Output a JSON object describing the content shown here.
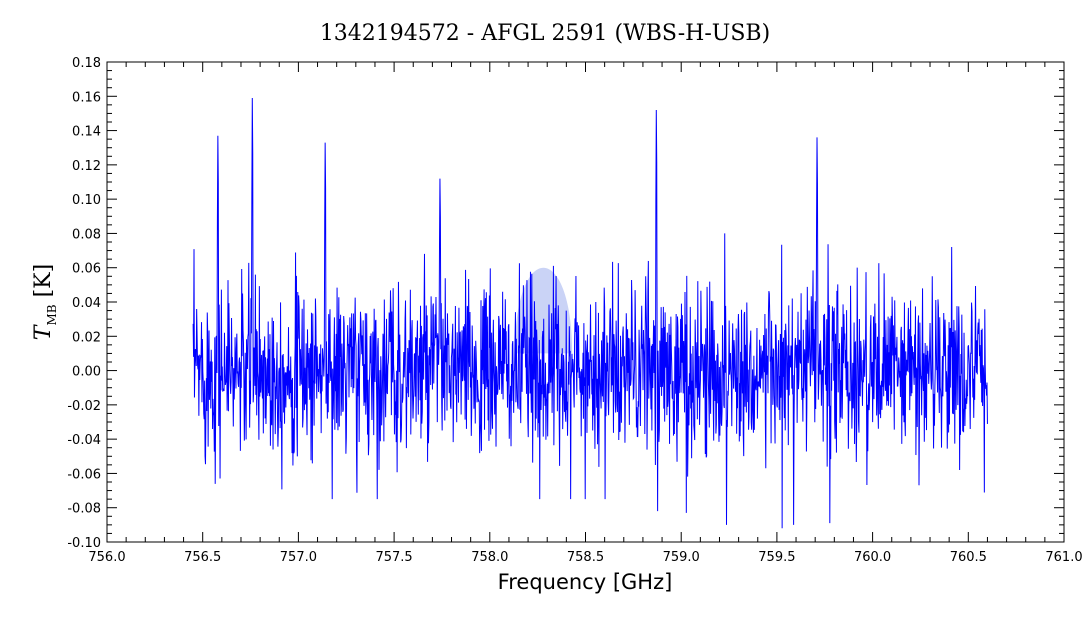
{
  "chart_data": {
    "type": "line",
    "title": "1342194572 - AFGL 2591 (WBS-H-USB)",
    "xlabel": "Frequency [GHz]",
    "ylabel": {
      "symbol": "T",
      "subscript": "MB",
      "unit": "[K]"
    },
    "xlim": [
      756.0,
      761.0
    ],
    "ylim": [
      -0.1,
      0.18
    ],
    "xticks": [
      "756.0",
      "756.5",
      "757.0",
      "757.5",
      "758.0",
      "758.5",
      "759.0",
      "759.5",
      "760.0",
      "760.5",
      "761.0"
    ],
    "yticks": [
      "-0.10",
      "-0.08",
      "-0.06",
      "-0.04",
      "-0.02",
      "0.00",
      "0.02",
      "0.04",
      "0.06",
      "0.08",
      "0.10",
      "0.12",
      "0.14",
      "0.16",
      "0.18"
    ],
    "series": [
      {
        "color": "#0000ff",
        "x_range": [
          756.45,
          760.6
        ],
        "baseline": 0.0,
        "noise_rms": 0.025,
        "peaks": [
          {
            "x": 756.58,
            "y": 0.137
          },
          {
            "x": 756.76,
            "y": 0.159
          },
          {
            "x": 757.14,
            "y": 0.133
          },
          {
            "x": 757.74,
            "y": 0.112
          },
          {
            "x": 758.87,
            "y": 0.152
          },
          {
            "x": 759.71,
            "y": 0.136
          }
        ],
        "dips": [
          {
            "x": 758.87,
            "y": -0.082
          },
          {
            "x": 759.02,
            "y": -0.083
          },
          {
            "x": 759.23,
            "y": -0.09
          },
          {
            "x": 759.52,
            "y": -0.092
          },
          {
            "x": 759.58,
            "y": -0.09
          },
          {
            "x": 759.77,
            "y": -0.089
          }
        ]
      }
    ],
    "highlight": {
      "x_center": 758.28,
      "x_halfwidth": 0.15,
      "y_top": 0.065,
      "color": "#4060e0"
    },
    "grid": false,
    "legend": "none"
  }
}
